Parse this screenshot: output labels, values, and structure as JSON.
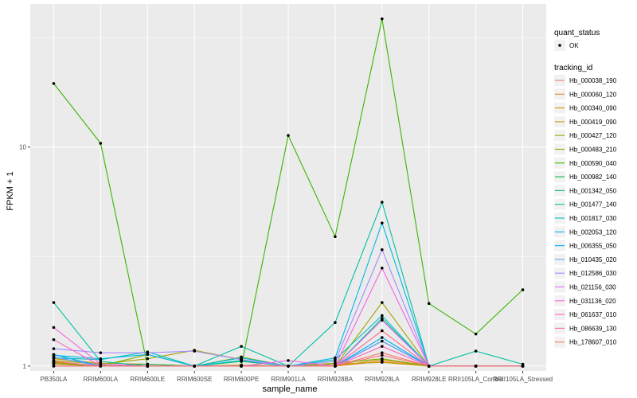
{
  "chart_data": {
    "type": "line",
    "title": "",
    "xlabel": "sample_name",
    "ylabel": "FPKM + 1",
    "y_scale": "log10",
    "ylim": [
      0.95,
      45
    ],
    "y_ticks": [
      1,
      10
    ],
    "y_tick_labels": [
      "1",
      "10"
    ],
    "categories": [
      "PB350LA",
      "RRIM600LA",
      "RRIM600LE",
      "RRIM600SE",
      "RRIM600PE",
      "RRIM901LA",
      "RRIM928BA",
      "RRIM928LA",
      "RRIM928LE",
      "RRII105LA_Control",
      "RRII105LA_Stressed"
    ],
    "tick_labels": [
      "PB350LA",
      "RRIM600LA",
      "RRIM600LE",
      "RRIM600SE",
      "RRIM600PE",
      "RRIM901LA",
      "RRIM928BA",
      "RRIM928LA",
      "RRIM928LE",
      "RRII105LA_Control",
      "RRII105LA_Stressed"
    ],
    "legend": {
      "quant_status_title": "quant_status",
      "quant_status_item": "OK",
      "tracking_title": "tracking_id"
    },
    "series": [
      {
        "name": "Hb_000038_190",
        "color": "#F8766D",
        "values": [
          1.05,
          1.0,
          1.0,
          1.0,
          1.0,
          1.0,
          1.0,
          1.12,
          1.0,
          1.0,
          1.0
        ]
      },
      {
        "name": "Hb_000060_120",
        "color": "#EA8331",
        "values": [
          1.02,
          1.0,
          1.0,
          1.0,
          1.0,
          1.0,
          1.0,
          1.05,
          1.0,
          1.0,
          1.0
        ]
      },
      {
        "name": "Hb_000340_090",
        "color": "#D89000",
        "values": [
          1.08,
          1.03,
          1.02,
          1.0,
          1.0,
          1.0,
          1.0,
          1.07,
          1.0,
          1.0,
          1.0
        ]
      },
      {
        "name": "Hb_000419_090",
        "color": "#C09B00",
        "values": [
          1.04,
          1.0,
          1.0,
          1.0,
          1.01,
          1.0,
          1.02,
          1.04,
          1.0,
          1.0,
          1.0
        ]
      },
      {
        "name": "Hb_000427_120",
        "color": "#A3A500",
        "values": [
          1.06,
          1.02,
          1.08,
          1.18,
          1.07,
          1.0,
          1.0,
          1.95,
          1.0,
          1.0,
          1.0
        ]
      },
      {
        "name": "Hb_000483_210",
        "color": "#7CAE00",
        "values": [
          1.03,
          1.0,
          1.13,
          1.0,
          1.1,
          1.0,
          1.03,
          1.08,
          1.0,
          1.0,
          1.0
        ]
      },
      {
        "name": "Hb_000590_040",
        "color": "#39B600",
        "values": [
          19.5,
          10.4,
          1.0,
          1.0,
          1.0,
          11.3,
          3.9,
          38.5,
          1.93,
          1.4,
          2.23
        ]
      },
      {
        "name": "Hb_000982_140",
        "color": "#00BB4E",
        "values": [
          1.1,
          1.0,
          1.02,
          1.0,
          1.05,
          1.0,
          1.0,
          1.3,
          1.0,
          1.0,
          1.0
        ]
      },
      {
        "name": "Hb_001342_050",
        "color": "#00BF7D",
        "values": [
          1.0,
          1.0,
          1.0,
          1.0,
          1.0,
          1.0,
          1.0,
          1.65,
          1.0,
          1.0,
          1.0
        ]
      },
      {
        "name": "Hb_001477_140",
        "color": "#00C1A3",
        "values": [
          1.95,
          1.05,
          1.0,
          1.0,
          1.23,
          1.0,
          1.58,
          5.6,
          1.0,
          1.17,
          1.02
        ]
      },
      {
        "name": "Hb_001817_030",
        "color": "#00BFC4",
        "values": [
          1.09,
          1.07,
          1.16,
          1.0,
          1.06,
          1.0,
          1.07,
          1.7,
          1.0,
          1.0,
          1.0
        ]
      },
      {
        "name": "Hb_002053_120",
        "color": "#00B8E5",
        "values": [
          1.12,
          1.08,
          1.13,
          1.0,
          1.09,
          1.0,
          1.09,
          4.5,
          1.0,
          1.0,
          1.0
        ]
      },
      {
        "name": "Hb_006355_050",
        "color": "#00ABFD",
        "values": [
          1.13,
          1.0,
          1.0,
          1.0,
          1.0,
          1.0,
          1.0,
          1.35,
          1.0,
          1.0,
          1.0
        ]
      },
      {
        "name": "Hb_010435_020",
        "color": "#619CFF",
        "values": [
          1.1,
          1.0,
          1.0,
          1.0,
          1.0,
          1.0,
          1.0,
          1.3,
          1.0,
          1.0,
          1.0
        ]
      },
      {
        "name": "Hb_012586_030",
        "color": "#A58AFF",
        "values": [
          1.2,
          1.15,
          1.15,
          1.17,
          1.07,
          1.0,
          1.05,
          3.4,
          1.0,
          1.0,
          1.0
        ]
      },
      {
        "name": "Hb_021156_030",
        "color": "#DB72FB",
        "values": [
          1.0,
          1.0,
          1.0,
          1.0,
          1.0,
          1.0,
          1.0,
          1.62,
          1.0,
          1.0,
          1.0
        ]
      },
      {
        "name": "Hb_031136_020",
        "color": "#F564E3",
        "values": [
          1.5,
          1.02,
          1.0,
          1.0,
          1.0,
          1.06,
          1.0,
          2.8,
          1.0,
          1.0,
          1.0
        ]
      },
      {
        "name": "Hb_061637_010",
        "color": "#FF61C3",
        "values": [
          1.32,
          1.0,
          1.0,
          1.0,
          1.0,
          1.0,
          1.0,
          1.23,
          1.0,
          1.0,
          1.0
        ]
      },
      {
        "name": "Hb_086639_130",
        "color": "#FF6C91",
        "values": [
          1.05,
          1.0,
          1.0,
          1.0,
          1.0,
          1.0,
          1.0,
          1.45,
          1.0,
          1.0,
          1.0
        ]
      },
      {
        "name": "Hb_178607_010",
        "color": "#F8766D",
        "values": [
          1.0,
          1.0,
          1.0,
          1.0,
          1.0,
          1.0,
          1.0,
          1.15,
          1.0,
          1.0,
          1.0
        ]
      }
    ]
  },
  "colors": {
    "panel_background": "#EBEBEB",
    "grid_major": "#FFFFFF",
    "point": "#000000"
  }
}
